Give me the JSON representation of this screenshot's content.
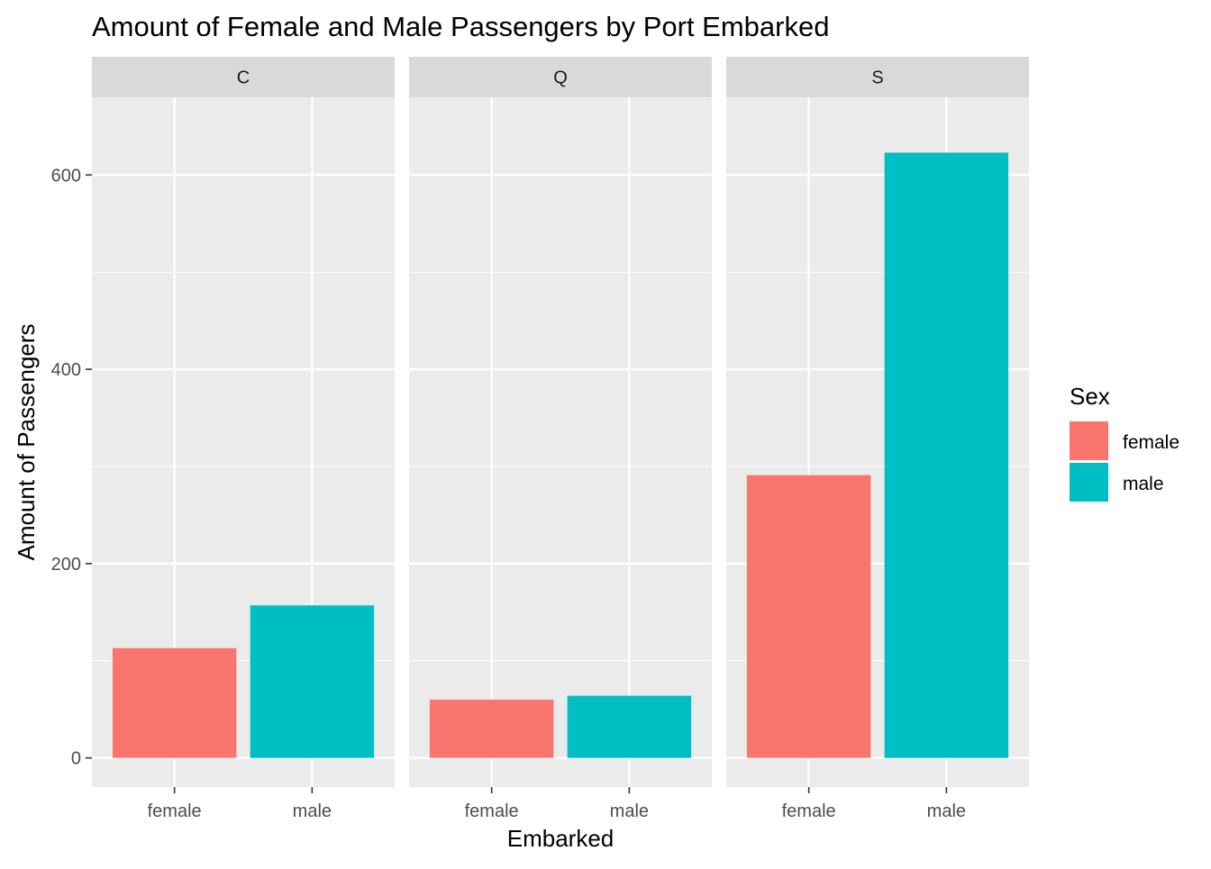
{
  "chart_data": {
    "type": "bar",
    "title": "Amount of Female and Male Passengers by Port Embarked",
    "xlabel": "Embarked",
    "ylabel": "Amount of Passengers",
    "ylim": [
      -30,
      680
    ],
    "y_ticks": [
      0,
      200,
      400,
      600
    ],
    "y_tick_labels": [
      "0",
      "200",
      "400",
      "600"
    ],
    "grid": true,
    "facet_by": "Embarked",
    "panels": [
      {
        "label": "C",
        "categories": [
          "female",
          "male"
        ],
        "values": [
          113,
          157
        ]
      },
      {
        "label": "Q",
        "categories": [
          "female",
          "male"
        ],
        "values": [
          60,
          64
        ]
      },
      {
        "label": "S",
        "categories": [
          "female",
          "male"
        ],
        "values": [
          291,
          623
        ]
      }
    ],
    "legend": {
      "title": "Sex",
      "placement": "right",
      "items": [
        {
          "name": "female",
          "color": "#F8766D"
        },
        {
          "name": "male",
          "color": "#00BFC4"
        }
      ]
    }
  }
}
